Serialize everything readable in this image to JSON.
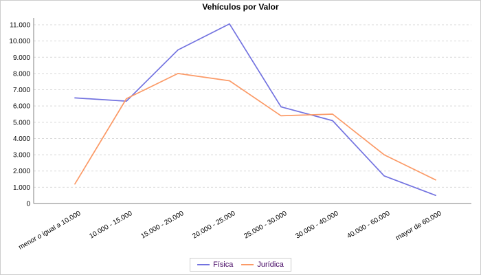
{
  "title": "Vehículos por Valor",
  "legend": {
    "items": [
      {
        "label": "Física",
        "color": "#7373e0"
      },
      {
        "label": "Jurídica",
        "color": "#fb9a67"
      }
    ]
  },
  "chart_data": {
    "type": "line",
    "title": "Vehículos por Valor",
    "categories": [
      "menor o igual a 10.000",
      "10.000 - 15.000",
      "15.000 - 20.000",
      "20.000 - 25.000",
      "25.000 - 30.000",
      "30.000 - 40.000",
      "40.000 - 60.000",
      "mayor de 60.000"
    ],
    "series": [
      {
        "name": "Física",
        "color": "#7373e0",
        "values": [
          6500,
          6300,
          9450,
          11050,
          5950,
          5100,
          1700,
          500
        ]
      },
      {
        "name": "Jurídica",
        "color": "#fb9a67",
        "values": [
          1200,
          6450,
          8000,
          7550,
          5400,
          5500,
          3000,
          1450
        ]
      }
    ],
    "xlabel": "",
    "ylabel": "",
    "ylim": [
      0,
      11000
    ],
    "ytick_step": 1000,
    "ytick_labels": [
      "0",
      "1.000",
      "2.000",
      "3.000",
      "4.000",
      "5.000",
      "6.000",
      "7.000",
      "8.000",
      "9.000",
      "10.000",
      "11.000"
    ],
    "grid": "horizontal-dashed",
    "legend_position": "bottom"
  },
  "colors": {
    "grid": "#d9d9d9",
    "axis": "#808080",
    "tick_text": "#000000",
    "title_text": "#000000",
    "legend_text": "#400060",
    "background": "#ffffff",
    "border": "#cccccc"
  }
}
